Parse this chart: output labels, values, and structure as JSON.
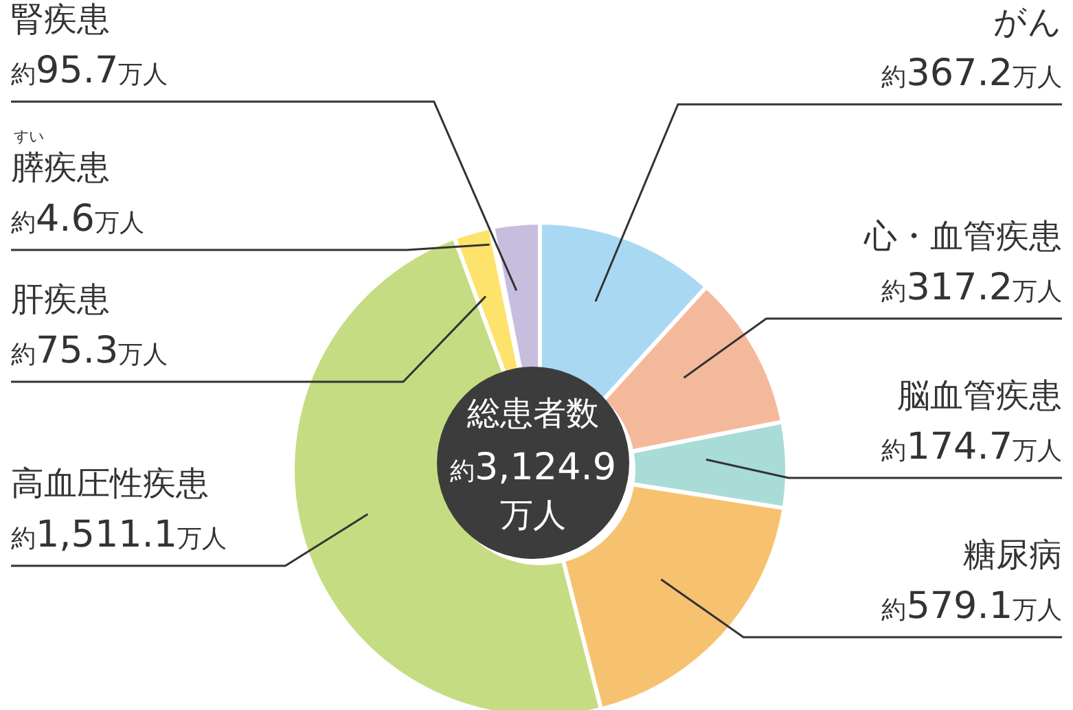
{
  "chart_data": {
    "type": "donut",
    "title": "総患者数",
    "subtitle": "約3,124.9万人",
    "categories": [
      "がん",
      "心・血管疾患",
      "脳血管疾患",
      "糖尿病",
      "高血圧性疾患",
      "肝疾患",
      "膵疾患",
      "腎疾患"
    ],
    "values": [
      367.2,
      317.2,
      174.7,
      579.1,
      1511.1,
      75.3,
      4.6,
      95.7
    ],
    "colors": [
      "#a9d9f2",
      "#f4b99b",
      "#a9dcd7",
      "#f7c26f",
      "#c6dc82",
      "#fde36b",
      "#f2eef6",
      "#c7bddf"
    ],
    "value_labels": [
      "約367.2万人",
      "約317.2万人",
      "約174.7万人",
      "約579.1万人",
      "約1,511.1万人",
      "約75.3万人",
      "約4.6万人",
      "約95.7万人"
    ],
    "annotations": [
      "すい"
    ]
  }
}
